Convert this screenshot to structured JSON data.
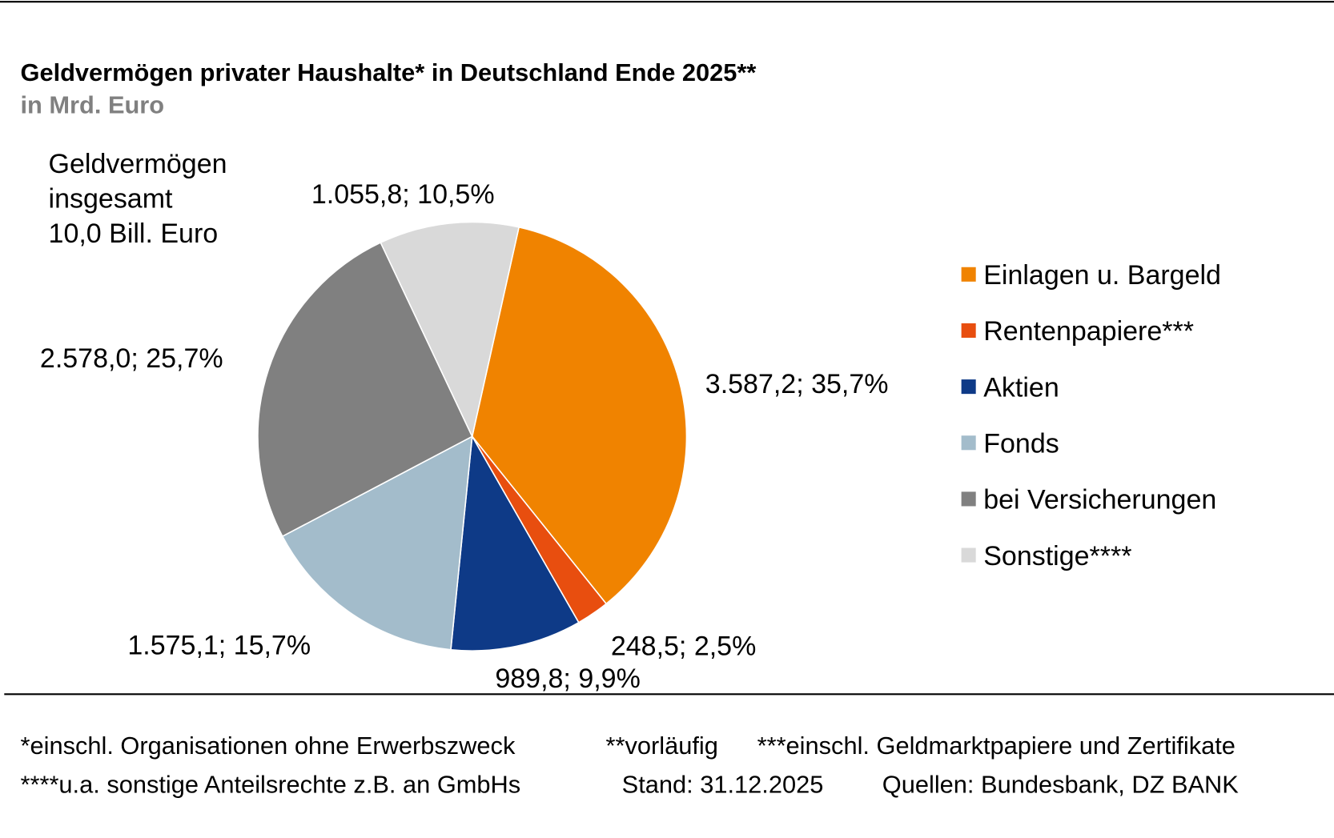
{
  "chart_data": {
    "type": "pie",
    "title": "Geldvermögen privater Haushalte* in Deutschland Ende 2025**",
    "subtitle": "in Mrd. Euro",
    "total_annotation": [
      "Geldvermögen",
      "insgesamt",
      "10,0 Bill. Euro"
    ],
    "legend_placement": "right",
    "slices": [
      {
        "name": "Einlagen u. Bargeld",
        "value": 3587.2,
        "percent": 35.7,
        "label": "3.587,2; 35,7%",
        "color": "#F08300"
      },
      {
        "name": "Rentenpapiere***",
        "value": 248.5,
        "percent": 2.5,
        "label": "248,5; 2,5%",
        "color": "#E84E0F"
      },
      {
        "name": "Aktien",
        "value": 989.8,
        "percent": 9.9,
        "label": "989,8; 9,9%",
        "color": "#0E3A87"
      },
      {
        "name": "Fonds",
        "value": 1575.1,
        "percent": 15.7,
        "label": "1.575,1; 15,7%",
        "color": "#A3BCCB"
      },
      {
        "name": "bei Versicherungen",
        "value": 2578.0,
        "percent": 25.7,
        "label": "2.578,0; 25,7%",
        "color": "#808080"
      },
      {
        "name": "Sonstige****",
        "value": 1055.8,
        "percent": 10.5,
        "label": "1.055,8; 10,5%",
        "color": "#D9D9D9"
      }
    ]
  },
  "footnotes": {
    "line1": [
      "*einschl. Organisationen ohne Erwerbszweck",
      "**vorläufig",
      "***einschl. Geldmarktpapiere und Zertifikate"
    ],
    "line2": [
      "****u.a. sonstige Anteilsrechte z.B. an GmbHs",
      "Stand: 31.12.2025",
      "Quellen: Bundesbank, DZ BANK"
    ]
  }
}
